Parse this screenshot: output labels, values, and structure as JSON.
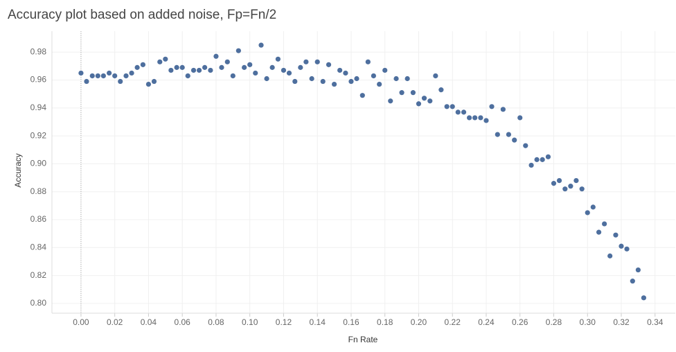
{
  "chart_data": {
    "type": "scatter",
    "title": "Accuracy plot based on added noise, Fp=Fn/2",
    "x_label": "Fn Rate",
    "y_label": "Accuracy",
    "color": "#4e6f9e",
    "grid": true,
    "x": [
      0,
      0.0033,
      0.0067,
      0.01,
      0.0133,
      0.0167,
      0.02,
      0.0233,
      0.0267,
      0.03,
      0.0333,
      0.0367,
      0.04,
      0.0433,
      0.0467,
      0.05,
      0.0533,
      0.0567,
      0.06,
      0.0633,
      0.0667,
      0.07,
      0.0733,
      0.0767,
      0.08,
      0.0833,
      0.0867,
      0.09,
      0.0933,
      0.0967,
      0.1,
      0.1033,
      0.1067,
      0.11,
      0.1133,
      0.1167,
      0.12,
      0.1233,
      0.1267,
      0.13,
      0.1333,
      0.1367,
      0.14,
      0.1433,
      0.1467,
      0.15,
      0.1533,
      0.1567,
      0.16,
      0.1633,
      0.1667,
      0.17,
      0.1733,
      0.1767,
      0.18,
      0.1833,
      0.1867,
      0.19,
      0.1933,
      0.1967,
      0.2,
      0.2033,
      0.2067,
      0.21,
      0.2133,
      0.2167,
      0.22,
      0.2233,
      0.2267,
      0.23,
      0.2333,
      0.2367,
      0.24,
      0.2433,
      0.2467,
      0.25,
      0.2533,
      0.2567,
      0.26,
      0.2633,
      0.2667,
      0.27,
      0.2733,
      0.2767,
      0.28,
      0.2833,
      0.2867,
      0.29,
      0.2933,
      0.2967,
      0.3,
      0.3033,
      0.3067,
      0.31,
      0.3133,
      0.3167,
      0.32,
      0.3233,
      0.3267,
      0.33,
      0.3333
    ],
    "values": [
      0.965,
      0.959,
      0.963,
      0.963,
      0.963,
      0.965,
      0.963,
      0.959,
      0.963,
      0.965,
      0.969,
      0.971,
      0.957,
      0.959,
      0.973,
      0.975,
      0.967,
      0.969,
      0.969,
      0.963,
      0.967,
      0.967,
      0.969,
      0.967,
      0.977,
      0.969,
      0.973,
      0.963,
      0.981,
      0.969,
      0.971,
      0.965,
      0.985,
      0.961,
      0.969,
      0.975,
      0.967,
      0.965,
      0.959,
      0.969,
      0.973,
      0.961,
      0.973,
      0.959,
      0.971,
      0.957,
      0.967,
      0.965,
      0.959,
      0.961,
      0.949,
      0.973,
      0.963,
      0.957,
      0.967,
      0.945,
      0.961,
      0.951,
      0.961,
      0.951,
      0.943,
      0.947,
      0.945,
      0.963,
      0.953,
      0.941,
      0.941,
      0.937,
      0.937,
      0.933,
      0.933,
      0.933,
      0.931,
      0.941,
      0.921,
      0.939,
      0.921,
      0.917,
      0.933,
      0.913,
      0.899,
      0.903,
      0.903,
      0.905,
      0.886,
      0.888,
      0.882,
      0.884,
      0.888,
      0.882,
      0.865,
      0.869,
      0.851,
      0.857,
      0.834,
      0.849,
      0.841,
      0.839,
      0.816,
      0.824,
      0.804
    ],
    "xlim": [
      -0.0172,
      0.352
    ],
    "ylim": [
      0.793,
      0.995
    ],
    "xticks": [
      {
        "value": 0,
        "label": "0.00"
      },
      {
        "value": 0.02,
        "label": "0.02"
      },
      {
        "value": 0.04,
        "label": "0.04"
      },
      {
        "value": 0.06,
        "label": "0.06"
      },
      {
        "value": 0.08,
        "label": "0.08"
      },
      {
        "value": 0.1,
        "label": "0.10"
      },
      {
        "value": 0.12,
        "label": "0.12"
      },
      {
        "value": 0.14,
        "label": "0.14"
      },
      {
        "value": 0.16,
        "label": "0.16"
      },
      {
        "value": 0.18,
        "label": "0.18"
      },
      {
        "value": 0.2,
        "label": "0.20"
      },
      {
        "value": 0.22,
        "label": "0.22"
      },
      {
        "value": 0.24,
        "label": "0.24"
      },
      {
        "value": 0.26,
        "label": "0.26"
      },
      {
        "value": 0.28,
        "label": "0.28"
      },
      {
        "value": 0.3,
        "label": "0.30"
      },
      {
        "value": 0.32,
        "label": "0.32"
      },
      {
        "value": 0.34,
        "label": "0.34"
      }
    ],
    "yticks": [
      {
        "value": 0.8,
        "label": "0.80"
      },
      0.82,
      0.84,
      0.86,
      0.88,
      {
        "value": 0.9,
        "label": "0.90"
      },
      0.92,
      0.94,
      0.96,
      0.98
    ]
  }
}
